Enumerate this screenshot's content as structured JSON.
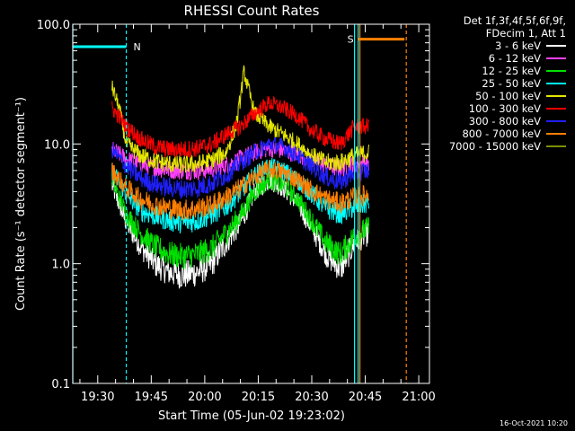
{
  "chart_data": {
    "type": "line",
    "title": "RHESSI Count Rates",
    "xlabel": "Start Time (05-Jun-02 19:23:02)",
    "ylabel": "Count Rate (s⁻¹ detector segment⁻¹)",
    "y_scale": "log",
    "ylim": [
      0.1,
      100
    ],
    "yticks": [
      "0.1",
      "1.0",
      "10.0",
      "100.0"
    ],
    "xlim": [
      "19:23",
      "21:03"
    ],
    "xticks": [
      "19:30",
      "19:45",
      "20:00",
      "20:15",
      "20:30",
      "20:45",
      "21:00"
    ],
    "legend_title": [
      "Det 1f,3f,4f,5f,6f,9f,",
      "FDecim 1, Att 1"
    ],
    "legend_placement": "right",
    "grid": false,
    "series": [
      {
        "name": "3 - 6 keV",
        "color": "#ffffff",
        "x": [
          "19:34",
          "19:38",
          "19:42",
          "19:46",
          "19:50",
          "19:54",
          "19:58",
          "20:02",
          "20:06",
          "20:10",
          "20:14",
          "20:18",
          "20:22",
          "20:26",
          "20:30",
          "20:34",
          "20:38",
          "20:42",
          "20:46"
        ],
        "values": [
          4.5,
          2.2,
          1.4,
          1.0,
          0.85,
          0.8,
          0.85,
          1.0,
          1.5,
          2.2,
          4.0,
          5.0,
          4.3,
          3.2,
          2.0,
          1.2,
          0.9,
          1.5,
          1.8
        ]
      },
      {
        "name": "6 - 12 keV",
        "color": "#ff40ff",
        "x": [
          "19:34",
          "19:38",
          "19:42",
          "19:46",
          "19:50",
          "19:54",
          "19:58",
          "20:02",
          "20:06",
          "20:10",
          "20:14",
          "20:18",
          "20:22",
          "20:26",
          "20:30",
          "20:34",
          "20:38",
          "20:42",
          "20:46"
        ],
        "values": [
          9,
          7.5,
          6.8,
          6.3,
          6.1,
          6.0,
          6.0,
          6.2,
          6.6,
          7.5,
          8.5,
          9.2,
          8.8,
          8.2,
          7.2,
          6.6,
          6.2,
          6.8,
          7.0
        ]
      },
      {
        "name": "12 - 25 keV",
        "color": "#00e000",
        "x": [
          "19:34",
          "19:38",
          "19:42",
          "19:46",
          "19:50",
          "19:54",
          "19:58",
          "20:02",
          "20:06",
          "20:10",
          "20:14",
          "20:18",
          "20:22",
          "20:26",
          "20:30",
          "20:34",
          "20:38",
          "20:42",
          "20:46"
        ],
        "values": [
          5,
          2.6,
          1.8,
          1.4,
          1.2,
          1.15,
          1.2,
          1.35,
          1.8,
          2.5,
          4.0,
          5.0,
          4.5,
          3.5,
          2.3,
          1.5,
          1.2,
          1.7,
          2.0
        ]
      },
      {
        "name": "25 - 50 keV",
        "color": "#00ffff",
        "x": [
          "19:34",
          "19:38",
          "19:42",
          "19:46",
          "19:50",
          "19:54",
          "19:58",
          "20:02",
          "20:06",
          "20:10",
          "20:14",
          "20:18",
          "20:22",
          "20:26",
          "20:30",
          "20:34",
          "20:38",
          "20:42",
          "20:46"
        ],
        "values": [
          6,
          3.8,
          2.8,
          2.5,
          2.3,
          2.2,
          2.3,
          2.6,
          3.0,
          4.0,
          5.5,
          6.5,
          6.0,
          5.0,
          3.8,
          2.9,
          2.6,
          3.0,
          3.2
        ]
      },
      {
        "name": "50 - 100 keV",
        "color": "#e6e600",
        "x": [
          "19:34",
          "19:36",
          "19:38",
          "19:42",
          "19:46",
          "19:50",
          "19:54",
          "19:58",
          "20:02",
          "20:06",
          "20:09",
          "20:11",
          "20:14",
          "20:18",
          "20:22",
          "20:26",
          "20:30",
          "20:34",
          "20:38",
          "20:42",
          "20:46"
        ],
        "values": [
          30,
          20,
          10,
          8,
          7.2,
          6.8,
          6.7,
          6.8,
          7.3,
          8.5,
          15,
          40,
          18,
          14,
          12,
          10,
          8,
          7,
          7,
          8,
          8.5
        ]
      },
      {
        "name": "100 - 300 keV",
        "color": "#ff0000",
        "x": [
          "19:34",
          "19:38",
          "19:42",
          "19:46",
          "19:50",
          "19:54",
          "19:58",
          "20:02",
          "20:06",
          "20:10",
          "20:14",
          "20:18",
          "20:22",
          "20:26",
          "20:30",
          "20:34",
          "20:38",
          "20:42",
          "20:46"
        ],
        "values": [
          20,
          14,
          11,
          9.5,
          9.0,
          9.0,
          9.2,
          10,
          12,
          14,
          18,
          22,
          20,
          17,
          13,
          11,
          10,
          14,
          14
        ]
      },
      {
        "name": "300 - 800 keV",
        "color": "#2020ff",
        "x": [
          "19:34",
          "19:38",
          "19:42",
          "19:46",
          "19:50",
          "19:54",
          "19:58",
          "20:02",
          "20:06",
          "20:10",
          "20:14",
          "20:18",
          "20:22",
          "20:26",
          "20:30",
          "20:34",
          "20:38",
          "20:42",
          "20:46"
        ],
        "values": [
          9,
          6.5,
          5.2,
          4.6,
          4.3,
          4.2,
          4.3,
          4.7,
          5.5,
          7,
          8.5,
          10,
          9.5,
          8,
          6.5,
          5.3,
          4.8,
          5.8,
          6.0
        ]
      },
      {
        "name": "800 - 7000 keV",
        "color": "#ff8000",
        "x": [
          "19:34",
          "19:38",
          "19:42",
          "19:46",
          "19:50",
          "19:54",
          "19:58",
          "20:02",
          "20:06",
          "20:10",
          "20:14",
          "20:18",
          "20:22",
          "20:26",
          "20:30",
          "20:34",
          "20:38",
          "20:42",
          "20:46"
        ],
        "values": [
          6,
          4.3,
          3.5,
          3.1,
          2.9,
          2.8,
          2.9,
          3.1,
          3.6,
          4.3,
          5.3,
          6.2,
          5.8,
          5.0,
          4.1,
          3.5,
          3.2,
          3.6,
          3.8
        ]
      },
      {
        "name": "7000 - 15000 keV",
        "color": "#809000",
        "x": [],
        "values": []
      }
    ],
    "annotations": [
      {
        "label": "N",
        "color": "#00ffff",
        "x_start": "19:23",
        "x_end": "19:38",
        "y": 65
      },
      {
        "label": "S",
        "color": "#ff8000",
        "x_start": "20:43",
        "x_end": "20:56",
        "y": 75
      }
    ],
    "markers": [
      {
        "color": "#00ffff",
        "x": "19:23"
      },
      {
        "color": "#00ffff",
        "x": "19:38",
        "dashed": true
      },
      {
        "color": "#00ffff",
        "x": "20:42"
      },
      {
        "color": "#ff8000",
        "x": "20:43"
      },
      {
        "color": "#00ffff",
        "x": "20:43"
      },
      {
        "color": "#ff8000",
        "x": "20:56",
        "dashed": true
      }
    ],
    "timestamp": "16-Oct-2021 10:20"
  }
}
